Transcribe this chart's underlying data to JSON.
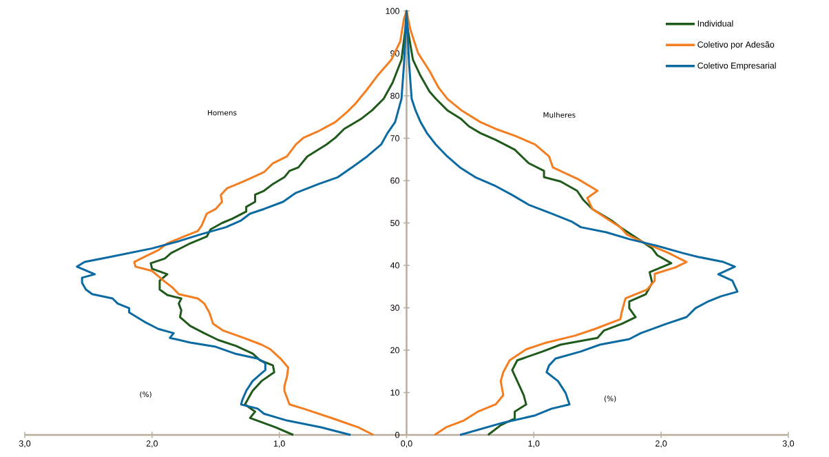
{
  "chart_data": {
    "type": "line",
    "annotations": [
      "Homens",
      "Mulheres",
      "(%)",
      "(%)"
    ],
    "xlim": [
      -3,
      3
    ],
    "ylim": [
      0,
      100
    ],
    "xticks": [
      {
        "value": -3,
        "label": "3,0"
      },
      {
        "value": -2,
        "label": "2,0"
      },
      {
        "value": -1,
        "label": "1,0"
      },
      {
        "value": 0,
        "label": "0,0"
      },
      {
        "value": 1,
        "label": "1,0"
      },
      {
        "value": 2,
        "label": "2,0"
      },
      {
        "value": 3,
        "label": "3,0"
      }
    ],
    "yticks": [
      0,
      10,
      20,
      30,
      40,
      50,
      60,
      70,
      80,
      90,
      100
    ],
    "legend": "top right",
    "series": [
      {
        "name": "Individual",
        "color": "#1f5a1b",
        "x": [
          -0.89,
          -1.03,
          -1.23,
          -1.19,
          -1.27,
          -1.21,
          -1.14,
          -1.04,
          -1.05,
          -1.15,
          -1.21,
          -1.34,
          -1.48,
          -1.59,
          -1.7,
          -1.78,
          -1.77,
          -1.79,
          -1.77,
          -1.88,
          -1.94,
          -1.94,
          -1.88,
          -2.0,
          -2.01,
          -1.9,
          -1.85,
          -1.7,
          -1.57,
          -1.54,
          -1.45,
          -1.37,
          -1.26,
          -1.26,
          -1.19,
          -1.19,
          -1.12,
          -1.05,
          -0.96,
          -0.92,
          -0.85,
          -0.78,
          -0.63,
          -0.56,
          -0.49,
          -0.36,
          -0.27,
          -0.18,
          -0.11,
          -0.04,
          -0.01,
          0,
          0.01,
          0.05,
          0.11,
          0.18,
          0.23,
          0.32,
          0.43,
          0.49,
          0.58,
          0.7,
          0.85,
          0.96,
          1.08,
          1.08,
          1.21,
          1.34,
          1.39,
          1.46,
          1.61,
          1.68,
          1.82,
          1.93,
          1.97,
          2.08,
          1.91,
          1.93,
          1.88,
          1.75,
          1.75,
          1.8,
          1.69,
          1.55,
          1.5,
          1.21,
          1.07,
          0.87,
          0.83,
          0.87,
          0.92,
          0.94,
          0.85,
          0.85,
          0.74,
          0.64
        ],
        "values": [
          0,
          1.8,
          4,
          5.5,
          7.2,
          10.4,
          12.7,
          14.8,
          16.4,
          17.6,
          19.2,
          21,
          22.4,
          24,
          25.7,
          27.8,
          29.4,
          31,
          32.2,
          33,
          34.3,
          36.4,
          37.9,
          39.2,
          40.5,
          41.6,
          42.9,
          45.2,
          46.8,
          48.5,
          50,
          51,
          52.7,
          53.8,
          55,
          56.7,
          57.6,
          59.2,
          60.8,
          62.3,
          63.1,
          65.7,
          68.5,
          70.1,
          72.2,
          74.5,
          76.6,
          79.3,
          83.1,
          88.5,
          95.6,
          100,
          95.6,
          88.5,
          84.7,
          81,
          79.3,
          76.6,
          74.5,
          72.8,
          71.2,
          69.6,
          67.3,
          64.1,
          62.3,
          60.8,
          59.8,
          57.6,
          55.4,
          53.3,
          50.6,
          49,
          46.2,
          44,
          42.4,
          40.5,
          38.4,
          35.9,
          33.2,
          31.5,
          29.9,
          27.8,
          26.2,
          24.6,
          22.9,
          21.3,
          19.7,
          17.6,
          15.3,
          12.7,
          9.4,
          7.2,
          5.5,
          3.9,
          2.3,
          0
        ]
      },
      {
        "name": "Coletivo por Adesão",
        "color": "#f47d20",
        "x": [
          -0.26,
          -0.38,
          -0.58,
          -0.81,
          -0.92,
          -0.96,
          -0.96,
          -0.94,
          -0.93,
          -0.99,
          -1.07,
          -1.14,
          -1.28,
          -1.44,
          -1.52,
          -1.55,
          -1.59,
          -1.64,
          -1.79,
          -1.84,
          -1.91,
          -2.0,
          -2.13,
          -2.14,
          -2.06,
          -1.95,
          -1.88,
          -1.75,
          -1.64,
          -1.61,
          -1.57,
          -1.5,
          -1.45,
          -1.46,
          -1.41,
          -1.28,
          -1.12,
          -1.05,
          -0.94,
          -0.87,
          -0.81,
          -0.69,
          -0.56,
          -0.47,
          -0.4,
          -0.31,
          -0.23,
          -0.12,
          -0.05,
          -0.02,
          0,
          0.03,
          0.09,
          0.18,
          0.25,
          0.32,
          0.43,
          0.58,
          0.7,
          0.85,
          1.01,
          1.12,
          1.15,
          1.35,
          1.5,
          1.42,
          1.46,
          1.57,
          1.68,
          1.73,
          1.88,
          2.06,
          2.2,
          2.11,
          1.95,
          1.95,
          1.89,
          1.72,
          1.69,
          1.68,
          1.48,
          1.32,
          1.1,
          0.94,
          0.81,
          0.76,
          0.74,
          0.76,
          0.7,
          0.56,
          0.45,
          0.31,
          0.22
        ],
        "values": [
          0,
          1.8,
          3.9,
          6.2,
          7.2,
          10.4,
          11.5,
          13.7,
          15.9,
          18,
          20.2,
          21.3,
          22.9,
          24.6,
          26.2,
          28.9,
          31,
          32.2,
          33.2,
          34.8,
          36.4,
          38.7,
          39.7,
          40.8,
          42,
          43.6,
          45.2,
          46.8,
          48.1,
          49.4,
          52.2,
          53.3,
          55,
          56.6,
          58.2,
          59.8,
          62,
          64.1,
          65.7,
          68.5,
          70.1,
          71.7,
          73.8,
          76.1,
          78.2,
          81.5,
          84.7,
          88.5,
          92.8,
          98.2,
          100,
          95.6,
          90.1,
          85.9,
          82,
          79.3,
          76.6,
          73.8,
          72.2,
          70.6,
          68.5,
          65.7,
          63.1,
          60.3,
          57.6,
          55.9,
          53.3,
          51.1,
          49,
          47.3,
          45.2,
          42.9,
          40.8,
          39.5,
          38,
          36.4,
          34.3,
          32.2,
          28.9,
          27.3,
          25,
          23.4,
          21.8,
          20.2,
          17.6,
          14.8,
          12.7,
          9.4,
          7.2,
          5.5,
          3.4,
          1.8,
          0
        ]
      },
      {
        "name": "Coletivo Empresarial",
        "color": "#0a6aa1",
        "x": [
          -0.44,
          -0.67,
          -0.94,
          -1.12,
          -1.17,
          -1.3,
          -1.29,
          -1.26,
          -1.21,
          -1.15,
          -1.11,
          -1.11,
          -1.17,
          -1.35,
          -1.5,
          -1.7,
          -1.86,
          -1.83,
          -1.95,
          -2.06,
          -2.18,
          -2.18,
          -2.27,
          -2.31,
          -2.47,
          -2.52,
          -2.55,
          -2.55,
          -2.45,
          -2.59,
          -2.53,
          -2.33,
          -2.0,
          -1.79,
          -1.62,
          -1.42,
          -1.3,
          -1.23,
          -1.12,
          -0.97,
          -0.87,
          -0.69,
          -0.54,
          -0.43,
          -0.31,
          -0.2,
          -0.15,
          -0.09,
          -0.04,
          -0.02,
          0,
          0.02,
          0.04,
          0.07,
          0.11,
          0.16,
          0.23,
          0.32,
          0.42,
          0.54,
          0.7,
          0.83,
          0.96,
          1.14,
          1.3,
          1.37,
          1.57,
          1.75,
          1.97,
          2.17,
          2.29,
          2.49,
          2.58,
          2.45,
          2.56,
          2.6,
          2.47,
          2.37,
          2.27,
          2.2,
          2.04,
          1.84,
          1.75,
          1.52,
          1.37,
          1.17,
          1.12,
          1.1,
          1.19,
          1.25,
          1.28,
          1.14,
          1.01,
          0.76,
          0.42
        ],
        "values": [
          0,
          1.8,
          3.4,
          5,
          6.2,
          7.2,
          8.3,
          10.4,
          12.7,
          14.3,
          15.3,
          16.9,
          18,
          19.2,
          20.8,
          21.8,
          22.9,
          24,
          25,
          26.7,
          28.9,
          29.9,
          31,
          32.2,
          33.2,
          34.3,
          35.9,
          37.1,
          37.9,
          39.7,
          40.8,
          42,
          44,
          45.7,
          47.3,
          49,
          50.6,
          52.2,
          53.3,
          55,
          57.1,
          59.2,
          60.8,
          63.1,
          65.7,
          68.5,
          71.2,
          73.8,
          79.3,
          87.5,
          100,
          87.5,
          79.3,
          76.6,
          73.8,
          71.2,
          68.5,
          65.7,
          63.1,
          60.8,
          58.7,
          56.6,
          54.3,
          52.2,
          50.3,
          49,
          47.8,
          46.2,
          44.6,
          42.9,
          42,
          40.8,
          39.7,
          37.9,
          36.4,
          33.8,
          32.7,
          31.5,
          29.9,
          27.8,
          26.2,
          24,
          22.6,
          21.3,
          19.7,
          18,
          16.4,
          14.8,
          12.7,
          9.9,
          7.2,
          6.2,
          4.6,
          2.9,
          0
        ]
      }
    ]
  }
}
